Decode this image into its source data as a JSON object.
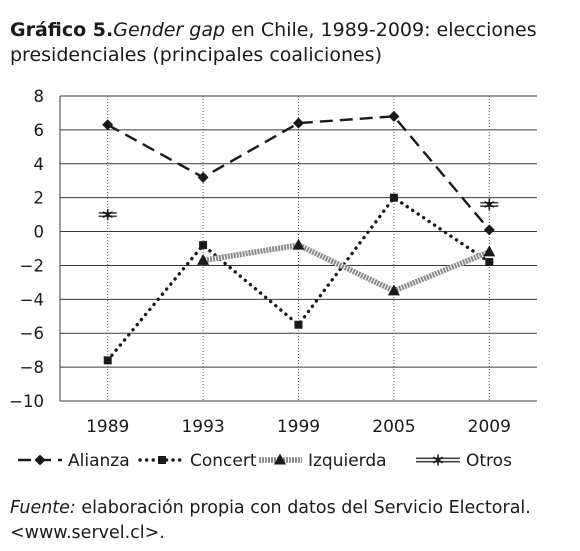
{
  "title": {
    "lead": "Gráfico 5.",
    "italic": "Gender gap",
    "rest": " en Chile, 1989-2009: elecciones presidenciales (principales coaliciones)"
  },
  "source": {
    "italic": "Fuente:",
    "rest": " elaboración propia con datos del Servicio Electoral. <www.servel.cl>."
  },
  "chart_data": {
    "type": "line",
    "title": "",
    "xlabel": "",
    "ylabel": "",
    "categories": [
      "1989",
      "1993",
      "1999",
      "2005",
      "2009"
    ],
    "ylim": [
      -10,
      8
    ],
    "yticks": [
      8,
      6,
      4,
      2,
      0,
      -2,
      -4,
      -6,
      -8,
      -10
    ],
    "grid": "horizontal",
    "legend_position": "bottom",
    "series": [
      {
        "name": "Alianza",
        "style": "dashed",
        "marker": "diamond",
        "values": [
          6.3,
          3.2,
          6.4,
          6.8,
          0.1
        ]
      },
      {
        "name": "Concert",
        "style": "dotted",
        "marker": "square",
        "values": [
          -7.6,
          -0.8,
          -5.5,
          2.0,
          -1.8
        ]
      },
      {
        "name": "Izquierda",
        "style": "hatched",
        "marker": "triangle",
        "values": [
          null,
          -1.7,
          -0.8,
          -3.5,
          -1.2
        ]
      },
      {
        "name": "Otros",
        "style": "double",
        "marker": "star",
        "values": [
          1.0,
          null,
          null,
          null,
          1.6
        ]
      }
    ]
  },
  "colors": {
    "ink": "#1a1a1a",
    "grid": "#3a3a3a"
  }
}
